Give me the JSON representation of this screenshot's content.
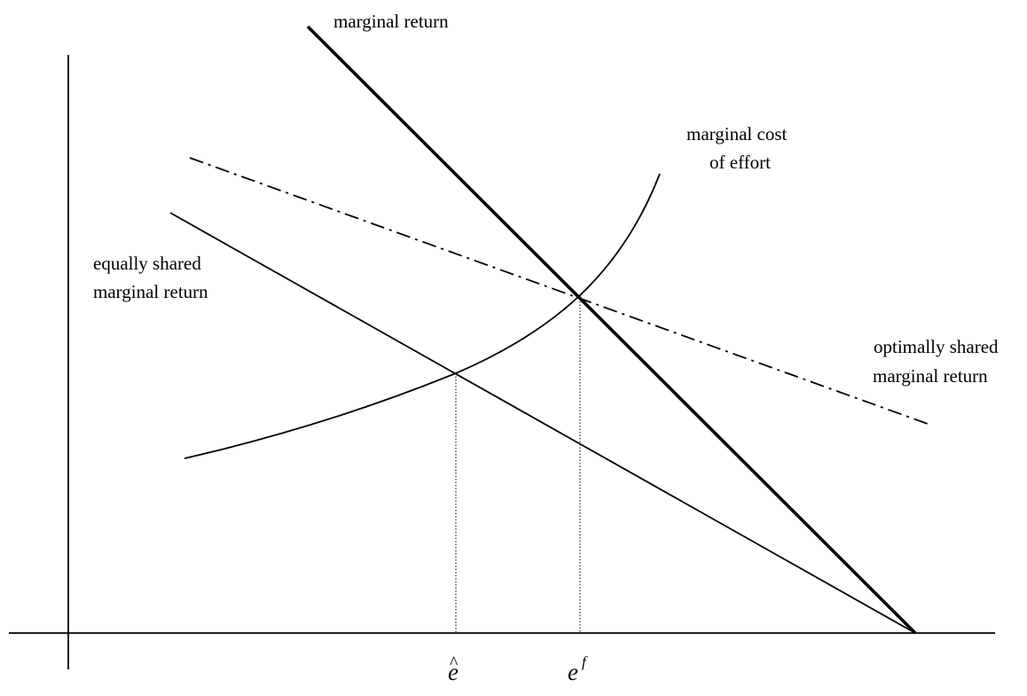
{
  "colors": {
    "ink": "#000000",
    "background": "#ffffff"
  },
  "curves": {
    "marginal_return": {
      "label": "marginal return",
      "style": "thick solid line"
    },
    "marginal_cost": {
      "label_line1": "marginal cost",
      "label_line2": "of effort",
      "style": "thin convex curve"
    },
    "equally_shared": {
      "label_line1": "equally shared",
      "label_line2": "marginal return",
      "style": "thin solid line"
    },
    "optimally_shared": {
      "label_line1": "optimally shared",
      "label_line2": "marginal return",
      "style": "dash-dot line"
    }
  },
  "x_axis_marks": {
    "e_hat": {
      "base": "e",
      "accent": "^"
    },
    "e_f": {
      "base": "e",
      "superscript": "f"
    }
  },
  "guides": {
    "style": "dotted vertical lines from intersections to the horizontal axis"
  }
}
